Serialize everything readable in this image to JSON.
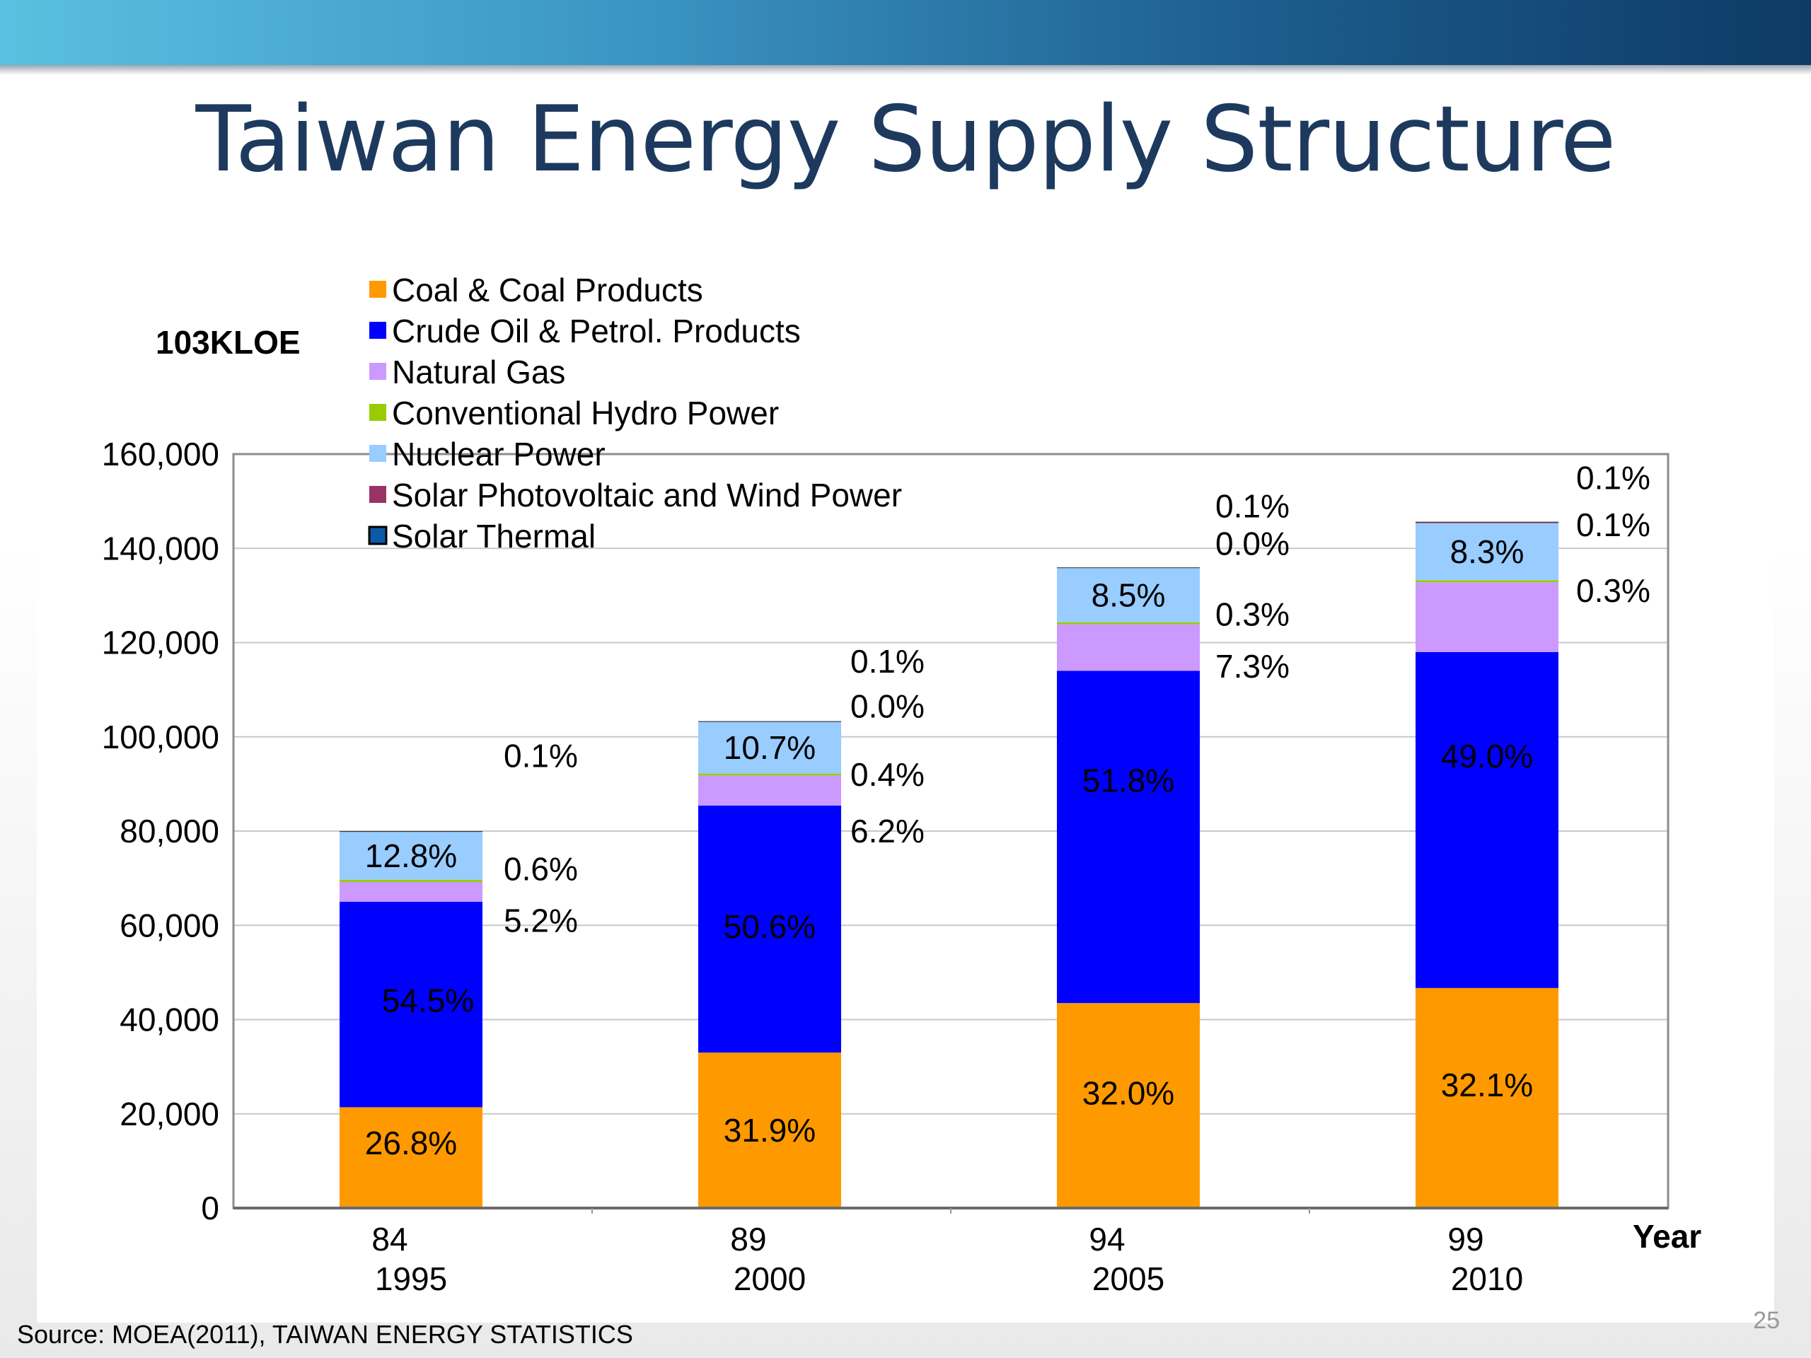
{
  "slide": {
    "title": "Taiwan Energy Supply Structure",
    "source": "Source: MOEA(2011), TAIWAN ENERGY STATISTICS",
    "number": "25"
  },
  "colors": {
    "coal": "#FF9900",
    "oil": "#0000FF",
    "gas": "#CC99FF",
    "hydro": "#99CC00",
    "nuclear": "#99CCFF",
    "solar_wind": "#993366",
    "thermal": "#0A5AA8",
    "top_band": "#1c5c8c",
    "title": "#1d3a5e"
  },
  "chart_data": {
    "type": "bar",
    "stacked": true,
    "unit_label": "103KLOE",
    "xlabel": "Year",
    "categories": [
      {
        "roc": "84",
        "year": "1995"
      },
      {
        "roc": "89",
        "year": "2000"
      },
      {
        "roc": "94",
        "year": "2005"
      },
      {
        "roc": "99",
        "year": "2010"
      }
    ],
    "ylim": [
      0,
      160000
    ],
    "yticks": [
      0,
      20000,
      40000,
      60000,
      80000,
      100000,
      120000,
      140000,
      160000
    ],
    "ytick_labels": [
      "0",
      "20,000",
      "40,000",
      "60,000",
      "80,000",
      "100,000",
      "120,000",
      "140,000",
      "160,000"
    ],
    "grid": true,
    "legend_position": "top-left",
    "series": [
      {
        "key": "coal",
        "name": "Coal & Coal Products",
        "values": [
          21400,
          33000,
          43500,
          46700
        ]
      },
      {
        "key": "oil",
        "name": "Crude Oil & Petrol. Products",
        "values": [
          43600,
          52400,
          70500,
          71300
        ]
      },
      {
        "key": "gas",
        "name": "Natural Gas",
        "values": [
          4200,
          6400,
          9900,
          14800
        ]
      },
      {
        "key": "hydro",
        "name": "Conventional Hydro Power",
        "values": [
          480,
          410,
          410,
          440
        ]
      },
      {
        "key": "nuclear",
        "name": "Nuclear Power",
        "values": [
          10200,
          11000,
          11500,
          12100
        ]
      },
      {
        "key": "solar_wind",
        "name": "Solar Photovoltaic and Wind Power",
        "values": [
          0,
          0,
          0,
          150
        ]
      },
      {
        "key": "thermal",
        "name": "Solar Thermal",
        "values": [
          100,
          110,
          140,
          150
        ]
      }
    ],
    "bar_labels": [
      {
        "coal": "26.8%",
        "oil": "54.5%",
        "nuclear": "12.8%"
      },
      {
        "coal": "31.9%",
        "oil": "50.6%",
        "nuclear": "10.7%"
      },
      {
        "coal": "32.0%",
        "oil": "51.8%",
        "nuclear": "8.5%"
      },
      {
        "coal": "32.1%",
        "oil": "49.0%",
        "nuclear": "8.3%"
      }
    ],
    "side_labels": [
      [
        "0.1%",
        "0.6%",
        "5.2%"
      ],
      [
        "0.1%",
        "0.0%",
        "0.4%",
        "6.2%"
      ],
      [
        "0.1%",
        "0.0%",
        "0.3%",
        "7.3%"
      ],
      [
        "0.1%",
        "0.1%",
        "0.3%"
      ]
    ]
  }
}
